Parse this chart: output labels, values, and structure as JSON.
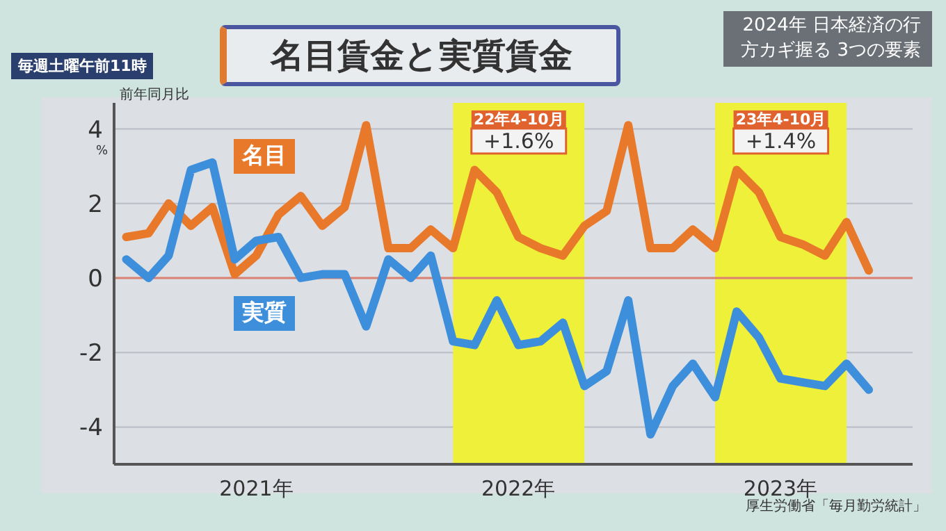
{
  "chart_data": {
    "type": "line",
    "title": "名目賃金と実質賃金",
    "subtitle": "2024年 日本経済の行方カギ握る 3つの要素",
    "ylabel": "前年同月比",
    "x": [
      "2021-01",
      "2021-02",
      "2021-03",
      "2021-04",
      "2021-05",
      "2021-06",
      "2021-07",
      "2021-08",
      "2021-09",
      "2021-10",
      "2021-11",
      "2021-12",
      "2022-01",
      "2022-02",
      "2022-03",
      "2022-04",
      "2022-05",
      "2022-06",
      "2022-07",
      "2022-08",
      "2022-09",
      "2022-10",
      "2022-11",
      "2022-12",
      "2023-01",
      "2023-02",
      "2023-03",
      "2023-04",
      "2023-05",
      "2023-06",
      "2023-07",
      "2023-08",
      "2023-09",
      "2023-10",
      "2023-11"
    ],
    "series": [
      {
        "name": "名目",
        "color": "#e8792b",
        "values": [
          1.1,
          1.2,
          2.0,
          1.4,
          1.9,
          0.1,
          0.6,
          1.7,
          2.2,
          1.4,
          1.9,
          4.1,
          0.8,
          0.8,
          1.3,
          0.8,
          2.9,
          2.3,
          1.1,
          0.8,
          0.6,
          1.4,
          1.8,
          4.1,
          0.8,
          0.8,
          1.3,
          0.8,
          2.9,
          2.3,
          1.1,
          0.9,
          0.6,
          1.5,
          0.2
        ]
      },
      {
        "name": "実質",
        "color": "#3d8fdb",
        "values": [
          0.5,
          0.0,
          0.6,
          2.9,
          3.1,
          0.5,
          1.0,
          1.1,
          0.0,
          0.1,
          0.1,
          -1.3,
          0.5,
          0.0,
          0.6,
          -1.7,
          -1.8,
          -0.6,
          -1.8,
          -1.7,
          -1.2,
          -2.9,
          -2.5,
          -0.6,
          -4.2,
          -2.9,
          -2.3,
          -3.2,
          -0.9,
          -1.6,
          -2.7,
          -2.8,
          -2.9,
          -2.3,
          -3.0
        ]
      }
    ],
    "xlim": [
      "2020-12-15",
      "2024-01-01"
    ],
    "xticks": [
      {
        "value": "2021-07-01",
        "label": "2021年"
      },
      {
        "value": "2022-07-01",
        "label": "2022年"
      },
      {
        "value": "2023-07-01",
        "label": "2023年"
      }
    ],
    "ylim": [
      -5,
      4.7
    ],
    "yticks": [
      -4,
      -2,
      0,
      2,
      4
    ],
    "grid": "y",
    "marker": "none",
    "line_style": "solid",
    "ref_lines": [
      {
        "axis": "y",
        "value": 0,
        "color": "#d98070"
      }
    ],
    "bands": [
      {
        "axis": "x",
        "from": "2022-04",
        "to": "2022-10",
        "label": "22年4-10月",
        "color": "#eef03a"
      },
      {
        "axis": "x",
        "from": "2023-04",
        "to": "2023-10",
        "label": "23年4-10月",
        "color": "#eef03a"
      }
    ],
    "annotations": [
      "+1.6%",
      "+1.4%",
      "%",
      "毎週土曜午前11時",
      "厚生労働省「毎月勤労統計」"
    ]
  }
}
